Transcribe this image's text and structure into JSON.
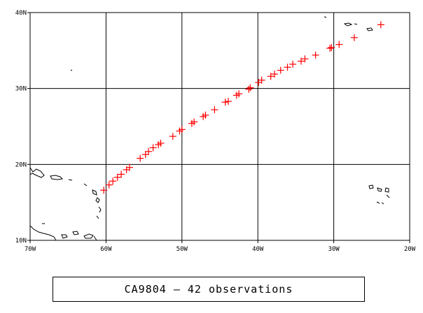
{
  "map": {
    "lon_range": [
      -70,
      -20
    ],
    "lat_range": [
      10,
      40
    ],
    "lon_ticks": [
      -70,
      -60,
      -50,
      -40,
      -30,
      -20
    ],
    "lat_ticks": [
      10,
      20,
      30,
      40
    ],
    "lon_tick_labels": [
      "70W",
      "60W",
      "50W",
      "40W",
      "30W",
      "20W"
    ],
    "lat_tick_labels": [
      "10N",
      "20N",
      "30N",
      "40N"
    ],
    "grid": true,
    "frame_color": "#000000",
    "coast_color": "#000000"
  },
  "observations": {
    "marker": "plus",
    "color": "#ff0000",
    "points": [
      [
        -60.3,
        16.6
      ],
      [
        -59.6,
        17.3
      ],
      [
        -59.1,
        17.8
      ],
      [
        -58.5,
        18.3
      ],
      [
        -58.0,
        18.7
      ],
      [
        -57.3,
        19.3
      ],
      [
        -56.9,
        19.6
      ],
      [
        -55.5,
        20.8
      ],
      [
        -54.8,
        21.3
      ],
      [
        -54.4,
        21.7
      ],
      [
        -53.8,
        22.2
      ],
      [
        -53.1,
        22.6
      ],
      [
        -52.8,
        22.8
      ],
      [
        -51.2,
        23.7
      ],
      [
        -50.3,
        24.4
      ],
      [
        -50.0,
        24.6
      ],
      [
        -48.7,
        25.4
      ],
      [
        -48.4,
        25.6
      ],
      [
        -47.2,
        26.3
      ],
      [
        -46.9,
        26.5
      ],
      [
        -45.7,
        27.2
      ],
      [
        -44.3,
        28.2
      ],
      [
        -43.9,
        28.3
      ],
      [
        -42.8,
        29.1
      ],
      [
        -42.5,
        29.3
      ],
      [
        -41.2,
        29.9
      ],
      [
        -41.0,
        30.1
      ],
      [
        -39.9,
        30.8
      ],
      [
        -39.5,
        31.1
      ],
      [
        -38.3,
        31.6
      ],
      [
        -37.8,
        31.9
      ],
      [
        -37.0,
        32.4
      ],
      [
        -36.1,
        32.8
      ],
      [
        -35.4,
        33.2
      ],
      [
        -34.3,
        33.6
      ],
      [
        -33.8,
        33.9
      ],
      [
        -32.4,
        34.4
      ],
      [
        -30.5,
        35.3
      ],
      [
        -30.3,
        35.4
      ],
      [
        -29.3,
        35.8
      ],
      [
        -27.3,
        36.7
      ],
      [
        -23.8,
        38.4
      ]
    ]
  },
  "caption": "CA9804 – 42 observations"
}
